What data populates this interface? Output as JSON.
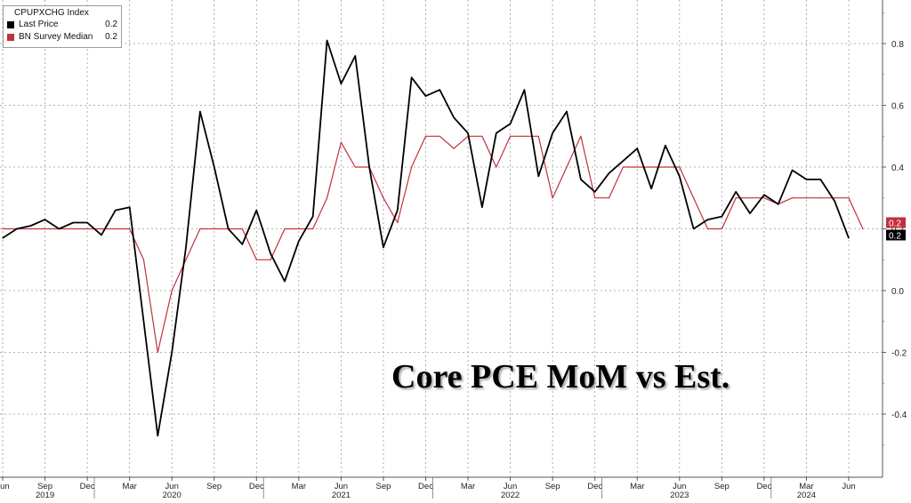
{
  "legend": {
    "title": "CPUPXCHG Index",
    "items": [
      {
        "name": "Last Price",
        "value": "0.2",
        "color": "#000000"
      },
      {
        "name": "BN Survey Median",
        "value": "0.2",
        "color": "#c0313b"
      }
    ]
  },
  "overlay_title": "Core PCE MoM vs Est.",
  "chart_data": {
    "type": "line",
    "title": "Core PCE MoM vs Est.",
    "ylim": [
      -0.6,
      0.95
    ],
    "yticks": [
      "0.8",
      "0.6",
      "0.4",
      "0.2",
      "0.0",
      "-0.2",
      "-0.4"
    ],
    "ytick_values": [
      0.8,
      0.6,
      0.4,
      0.2,
      0.0,
      -0.2,
      -0.4
    ],
    "grid": true,
    "legend_position": "top-left",
    "x_month_labels": [
      "Jun",
      "Sep",
      "Dec",
      "Mar",
      "Jun",
      "Sep",
      "Dec",
      "Mar",
      "Jun",
      "Sep",
      "Dec",
      "Mar",
      "Jun",
      "Sep",
      "Dec",
      "Mar",
      "Jun",
      "Sep",
      "Dec",
      "Mar",
      "Jun"
    ],
    "x_month_indices": [
      0,
      3,
      6,
      9,
      12,
      15,
      18,
      21,
      24,
      27,
      30,
      33,
      36,
      39,
      42,
      45,
      48,
      51,
      54,
      57,
      60
    ],
    "x_year_labels": [
      "2019",
      "2020",
      "2021",
      "2022",
      "2023",
      "2024"
    ],
    "x_year_indices": [
      3,
      12,
      24,
      36,
      48,
      57
    ],
    "end_labels": [
      {
        "text": "0.2",
        "value": 0.2,
        "color": "#c0313b"
      },
      {
        "text": "0.2",
        "value": 0.2,
        "color": "#000000"
      }
    ],
    "series": [
      {
        "name": "Last Price",
        "color": "#000000",
        "start_index": 0,
        "values": [
          0.17,
          0.2,
          0.21,
          0.23,
          0.2,
          0.22,
          0.22,
          0.18,
          0.26,
          0.27,
          -0.1,
          -0.47,
          -0.2,
          0.14,
          0.58,
          0.4,
          0.2,
          0.15,
          0.26,
          0.12,
          0.03,
          0.16,
          0.24,
          0.81,
          0.67,
          0.76,
          0.4,
          0.14,
          0.26,
          0.69,
          0.63,
          0.65,
          0.56,
          0.51,
          0.27,
          0.51,
          0.54,
          0.65,
          0.37,
          0.51,
          0.58,
          0.36,
          0.32,
          0.38,
          0.42,
          0.46,
          0.33,
          0.47,
          0.37,
          0.2,
          0.23,
          0.24,
          0.32,
          0.25,
          0.31,
          0.28,
          0.39,
          0.36,
          0.36,
          0.29,
          0.17
        ]
      },
      {
        "name": "BN Survey Median",
        "color": "#c0313b",
        "start_index": 0,
        "values": [
          0.2,
          0.2,
          0.2,
          0.2,
          0.2,
          0.2,
          0.2,
          0.2,
          0.2,
          0.2,
          0.1,
          -0.2,
          0.0,
          0.1,
          0.2,
          0.2,
          0.2,
          0.2,
          0.1,
          0.1,
          0.2,
          0.2,
          0.2,
          0.3,
          0.48,
          0.4,
          0.4,
          0.3,
          0.22,
          0.4,
          0.5,
          0.5,
          0.46,
          0.5,
          0.5,
          0.4,
          0.5,
          0.5,
          0.5,
          0.3,
          0.4,
          0.5,
          0.3,
          0.3,
          0.4,
          0.4,
          0.4,
          0.4,
          0.4,
          0.3,
          0.2,
          0.2,
          0.3,
          0.3,
          0.3,
          0.28,
          0.3,
          0.3,
          0.3,
          0.3,
          0.3,
          0.2
        ]
      }
    ]
  }
}
